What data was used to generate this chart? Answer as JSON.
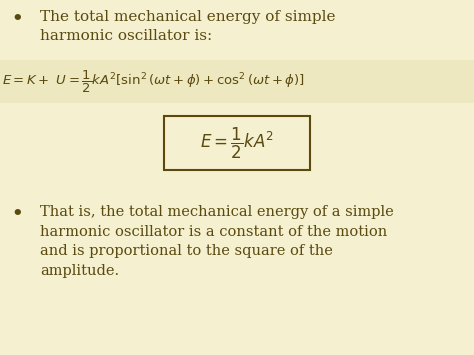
{
  "bg_color": "#f5f0d0",
  "stripe_color": "#ede8c0",
  "text_color": "#5a4a10",
  "bullet1_line1": "The total mechanical energy of simple",
  "bullet1_line2": "harmonic oscillator is:",
  "equation_full": "$E = K +\\ U = \\dfrac{1}{2}kA^{2}[\\sin^{2}(\\omega t + \\phi) + \\cos^{2}(\\omega t + \\phi)]$",
  "equation_box": "$E = \\dfrac{1}{2}kA^{2}$",
  "bullet2_line1": "That is, the total mechanical energy of a simple",
  "bullet2_line2": "harmonic oscillator is a constant of the motion",
  "bullet2_line3": "and is proportional to the square of the",
  "bullet2_line4": "amplitude.",
  "figsize": [
    4.74,
    3.55
  ],
  "dpi": 100
}
